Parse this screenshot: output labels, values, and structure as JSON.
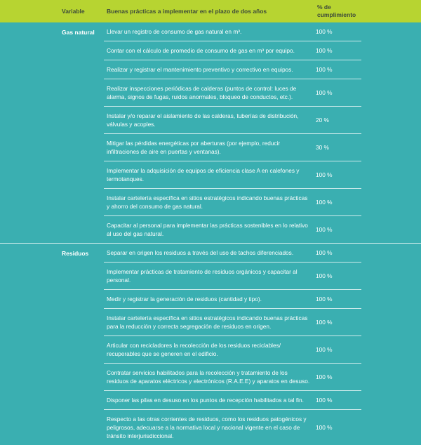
{
  "header": {
    "variable": "Variable",
    "practices": "Buenas prácticas a implementar en el plazo de dos años",
    "percent": "% de cumplimiento"
  },
  "sections": [
    {
      "variable": "Gas natural",
      "rows": [
        {
          "text": "Llevar un registro de consumo de gas natural en m³.",
          "percent": "100 %"
        },
        {
          "text": "Contar con el cálculo de promedio de consumo de gas en m³ por equipo.",
          "percent": "100 %"
        },
        {
          "text": "Realizar y registrar el mantenimiento preventivo y correctivo en equipos.",
          "percent": "100 %"
        },
        {
          "text": "Realizar inspecciones periódicas de calderas (puntos de control: luces de alarma, signos de fugas, ruidos anormales, bloqueo de conductos, etc.).",
          "percent": "100 %"
        },
        {
          "text": "Instalar y/o reparar el aislamiento de las calderas, tuberías de distribución, válvulas y acoples.",
          "percent": "20 %"
        },
        {
          "text": "Mitigar las pérdidas energéticas por aberturas (por ejemplo, reducir infiltraciones de aire en puertas y ventanas).",
          "percent": "30 %"
        },
        {
          "text": "Implementar la adquisición de equipos de eficiencia clase A en calefones y termotanques.",
          "percent": "100 %"
        },
        {
          "text": "Instalar cartelería específica en sitios estratégicos indicando buenas prácticas y ahorro del consumo de gas natural.",
          "percent": "100 %"
        },
        {
          "text": "Capacitar al personal para implementar las prácticas sostenibles en lo relativo al uso del gas natural.",
          "percent": "100 %"
        }
      ]
    },
    {
      "variable": "Residuos",
      "rows": [
        {
          "text": "Separar en origen los residuos a través del uso de tachos diferenciados.",
          "percent": "100 %"
        },
        {
          "text": "Implementar prácticas de tratamiento de residuos orgánicos y capacitar al personal.",
          "percent": "100 %"
        },
        {
          "text": "Medir y registrar la generación de residuos (cantidad y tipo).",
          "percent": "100 %"
        },
        {
          "text": "Instalar cartelería específica en sitios estratégicos indicando buenas prácticas para la reducción y correcta segregación de residuos en origen.",
          "percent": "100 %"
        },
        {
          "text": "Articular con recicladores la recolección de los residuos reciclables/ recuperables que se generen en el edificio.",
          "percent": "100 %"
        },
        {
          "text": "Contratar servicios habilitados para la recolección y tratamiento de los residuos de aparatos eléctricos y electrónicos (R.A.E.E) y aparatos en desuso.",
          "percent": "100 %"
        },
        {
          "text": "Disponer las pilas en desuso en los puntos de recepción habilitados a tal fin.",
          "percent": "100 %"
        },
        {
          "text": "Respecto a las otras corrientes de residuos, como los residuos patogénicos y peligrosos, adecuarse a la normativa local y nacional vigente en el caso de tránsito interjurisdiccional.",
          "percent": "100 %"
        }
      ]
    }
  ]
}
